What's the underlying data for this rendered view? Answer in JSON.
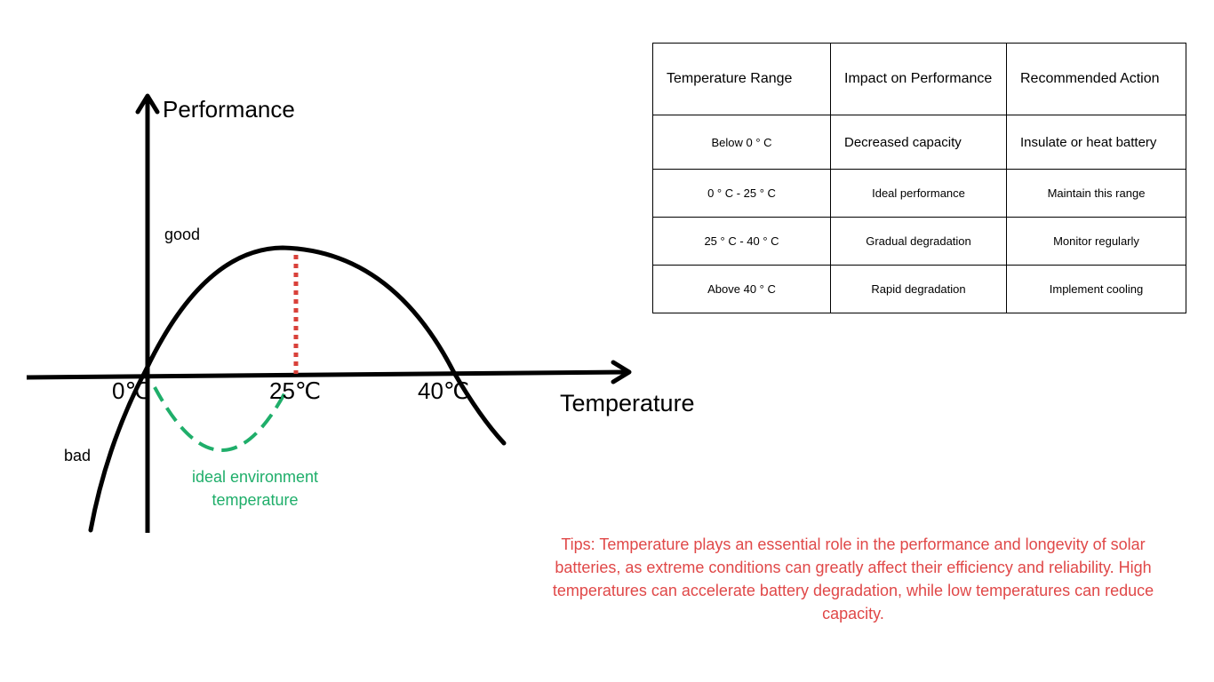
{
  "diagram": {
    "y_axis_label": "Performance",
    "x_axis_label": "Temperature",
    "good_label": "good",
    "bad_label": "bad",
    "ticks": [
      "0℃",
      "25℃",
      "40℃"
    ],
    "ideal_label": "ideal environment temperature",
    "colors": {
      "curve": "#000000",
      "ideal_dash": "#1fae6a",
      "peak_marker": "#d9413a"
    }
  },
  "table": {
    "headers": [
      "Temperature Range",
      "Impact on Performance",
      "Recommended Action"
    ],
    "rows": [
      [
        "Below 0 ° C",
        "Decreased capacity",
        "Insulate or heat battery"
      ],
      [
        "0 ° C - 25 ° C",
        "Ideal performance",
        "Maintain this range"
      ],
      [
        "25 ° C - 40 ° C",
        "Gradual degradation",
        "Monitor regularly"
      ],
      [
        "Above 40 ° C",
        "Rapid degradation",
        "Implement cooling"
      ]
    ]
  },
  "tips": {
    "text": "Tips: Temperature plays an essential role in the performance and longevity of solar batteries, as extreme conditions can greatly affect their efficiency and reliability. High temperatures can accelerate battery degradation, while low temperatures can reduce capacity.",
    "color": "#e04848"
  }
}
